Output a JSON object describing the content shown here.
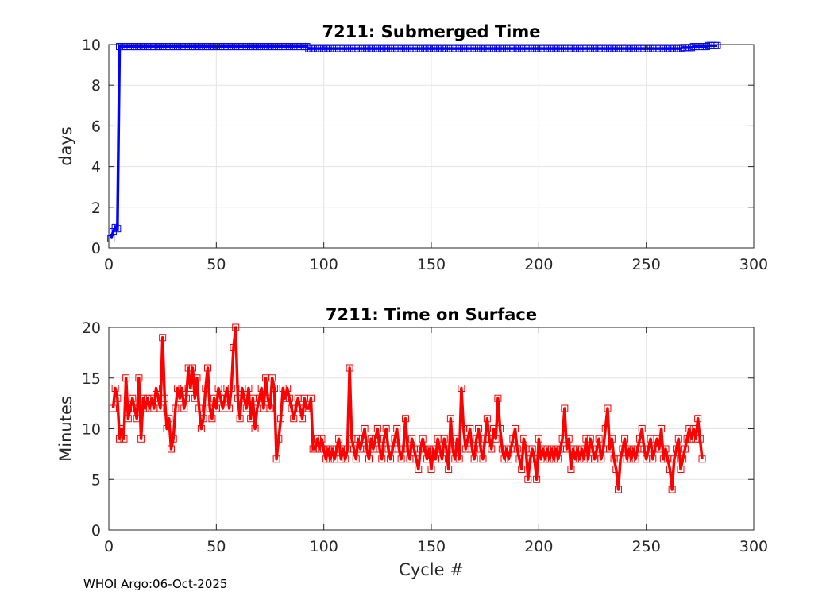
{
  "footer": "WHOI Argo:06-Oct-2025",
  "chart_data": [
    {
      "type": "line",
      "title": "7211: Submerged Time",
      "xlabel": "",
      "ylabel": "days",
      "xlim": [
        0,
        300
      ],
      "ylim": [
        0,
        10
      ],
      "xticks": [
        0,
        50,
        100,
        150,
        200,
        250,
        300
      ],
      "yticks": [
        0,
        2,
        4,
        6,
        8,
        10
      ],
      "grid": true,
      "color": "#0000ff",
      "marker": "square",
      "series": [
        {
          "x_start": 1,
          "x_step": 1,
          "values": [
            0.45,
            0.8,
            1.0,
            0.95,
            9.9,
            9.9,
            9.9,
            9.9,
            9.9,
            9.9,
            9.9,
            9.9,
            9.9,
            9.9,
            9.9,
            9.9,
            9.9,
            9.9,
            9.9,
            9.9,
            9.9,
            9.9,
            9.9,
            9.9,
            9.9,
            9.9,
            9.9,
            9.9,
            9.9,
            9.9,
            9.9,
            9.9,
            9.9,
            9.9,
            9.9,
            9.9,
            9.9,
            9.9,
            9.9,
            9.9,
            9.9,
            9.9,
            9.9,
            9.9,
            9.9,
            9.9,
            9.9,
            9.9,
            9.9,
            9.9,
            9.9,
            9.9,
            9.9,
            9.9,
            9.9,
            9.9,
            9.9,
            9.9,
            9.9,
            9.9,
            9.9,
            9.9,
            9.9,
            9.9,
            9.9,
            9.9,
            9.9,
            9.9,
            9.9,
            9.9,
            9.9,
            9.9,
            9.9,
            9.9,
            9.9,
            9.9,
            9.9,
            9.9,
            9.9,
            9.9,
            9.9,
            9.9,
            9.9,
            9.9,
            9.9,
            9.9,
            9.9,
            9.9,
            9.9,
            9.9,
            9.9,
            9.9,
            9.8,
            9.8,
            9.8,
            9.8,
            9.8,
            9.8,
            9.8,
            9.8,
            9.8,
            9.8,
            9.8,
            9.8,
            9.8,
            9.8,
            9.8,
            9.8,
            9.8,
            9.8,
            9.8,
            9.8,
            9.8,
            9.8,
            9.8,
            9.8,
            9.8,
            9.8,
            9.8,
            9.8,
            9.8,
            9.8,
            9.8,
            9.8,
            9.8,
            9.8,
            9.8,
            9.8,
            9.8,
            9.8,
            9.8,
            9.8,
            9.8,
            9.8,
            9.8,
            9.8,
            9.8,
            9.8,
            9.8,
            9.8,
            9.8,
            9.8,
            9.8,
            9.8,
            9.8,
            9.8,
            9.8,
            9.8,
            9.8,
            9.8,
            9.8,
            9.8,
            9.8,
            9.8,
            9.8,
            9.8,
            9.8,
            9.8,
            9.8,
            9.8,
            9.8,
            9.8,
            9.8,
            9.8,
            9.8,
            9.8,
            9.8,
            9.8,
            9.8,
            9.8,
            9.8,
            9.8,
            9.8,
            9.8,
            9.8,
            9.8,
            9.8,
            9.8,
            9.8,
            9.8,
            9.8,
            9.8,
            9.8,
            9.8,
            9.8,
            9.8,
            9.8,
            9.8,
            9.8,
            9.8,
            9.8,
            9.8,
            9.8,
            9.8,
            9.8,
            9.8,
            9.8,
            9.8,
            9.8,
            9.8,
            9.8,
            9.8,
            9.8,
            9.8,
            9.8,
            9.8,
            9.8,
            9.8,
            9.8,
            9.8,
            9.8,
            9.8,
            9.8,
            9.8,
            9.8,
            9.8,
            9.8,
            9.8,
            9.8,
            9.8,
            9.8,
            9.8,
            9.8,
            9.8,
            9.8,
            9.8,
            9.8,
            9.8,
            9.8,
            9.8,
            9.8,
            9.8,
            9.8,
            9.8,
            9.8,
            9.8,
            9.8,
            9.8,
            9.8,
            9.8,
            9.8,
            9.8,
            9.8,
            9.8,
            9.8,
            9.8,
            9.8,
            9.8,
            9.8,
            9.8,
            9.8,
            9.8,
            9.8,
            9.8,
            9.8,
            9.8,
            9.8,
            9.8,
            9.8,
            9.8,
            9.8,
            9.8,
            9.8,
            9.8,
            9.8,
            9.8,
            9.85,
            9.85,
            9.85,
            9.85,
            9.85,
            9.9,
            9.9,
            9.9,
            9.9,
            9.9,
            9.9,
            9.9,
            9.95,
            9.95,
            9.95,
            9.95,
            9.95
          ]
        }
      ]
    },
    {
      "type": "line",
      "title": "7211: Time on Surface",
      "xlabel": "Cycle #",
      "ylabel": "Minutes",
      "xlim": [
        0,
        300
      ],
      "ylim": [
        0,
        20
      ],
      "xticks": [
        0,
        50,
        100,
        150,
        200,
        250,
        300
      ],
      "yticks": [
        0,
        5,
        10,
        15,
        20
      ],
      "grid": true,
      "color": "#ff0000",
      "marker": "square",
      "series": [
        {
          "x_start": 2,
          "x_step": 1,
          "values": [
            12,
            14,
            13,
            9,
            10,
            9,
            15,
            11,
            12,
            13,
            12,
            11,
            15,
            9,
            13,
            12,
            13,
            12,
            13,
            12,
            14,
            13,
            12,
            19,
            13,
            10,
            11,
            8,
            9,
            12,
            14,
            13,
            14,
            12,
            13,
            16,
            14,
            16,
            13,
            15,
            12,
            10,
            11,
            14,
            16,
            12,
            11,
            13,
            12,
            14,
            13,
            12,
            13,
            14,
            12,
            14,
            18,
            20,
            13,
            11,
            14,
            13,
            12,
            14,
            11,
            13,
            10,
            12,
            13,
            14,
            12,
            15,
            13,
            12,
            15,
            14,
            7,
            9,
            11,
            14,
            13,
            14,
            13,
            12,
            11,
            12,
            13,
            12,
            11,
            13,
            12,
            12,
            13,
            8,
            8,
            9,
            8,
            9,
            8,
            7,
            8,
            7,
            8,
            7,
            8,
            9,
            7,
            8,
            7,
            8,
            16,
            9,
            8,
            7,
            9,
            8,
            9,
            10,
            8,
            7,
            9,
            8,
            9,
            10,
            8,
            7,
            9,
            10,
            8,
            7,
            8,
            9,
            10,
            8,
            7,
            8,
            11,
            8,
            7,
            9,
            8,
            7,
            6,
            8,
            9,
            8,
            7,
            8,
            6,
            8,
            7,
            9,
            8,
            7,
            9,
            8,
            6,
            11,
            8,
            7,
            9,
            7,
            14,
            10,
            8,
            9,
            10,
            8,
            7,
            9,
            10,
            8,
            7,
            9,
            11,
            9,
            8,
            10,
            9,
            13,
            10,
            8,
            7,
            8,
            7,
            8,
            9,
            10,
            8,
            7,
            6,
            9,
            8,
            5,
            7,
            8,
            7,
            5,
            9,
            7,
            8,
            7,
            8,
            7,
            8,
            7,
            8,
            7,
            8,
            9,
            12,
            8,
            9,
            6,
            8,
            7,
            8,
            7,
            8,
            7,
            9,
            7,
            9,
            8,
            7,
            8,
            9,
            7,
            8,
            10,
            12,
            8,
            9,
            7,
            6,
            4,
            7,
            8,
            9,
            7,
            8,
            7,
            8,
            7,
            8,
            9,
            10,
            8,
            7,
            8,
            9,
            7,
            8,
            9,
            8,
            10,
            7,
            8,
            7,
            6,
            4,
            7,
            8,
            9,
            6,
            7,
            8,
            9,
            10,
            9,
            10,
            9,
            11,
            9,
            7
          ]
        }
      ]
    }
  ]
}
